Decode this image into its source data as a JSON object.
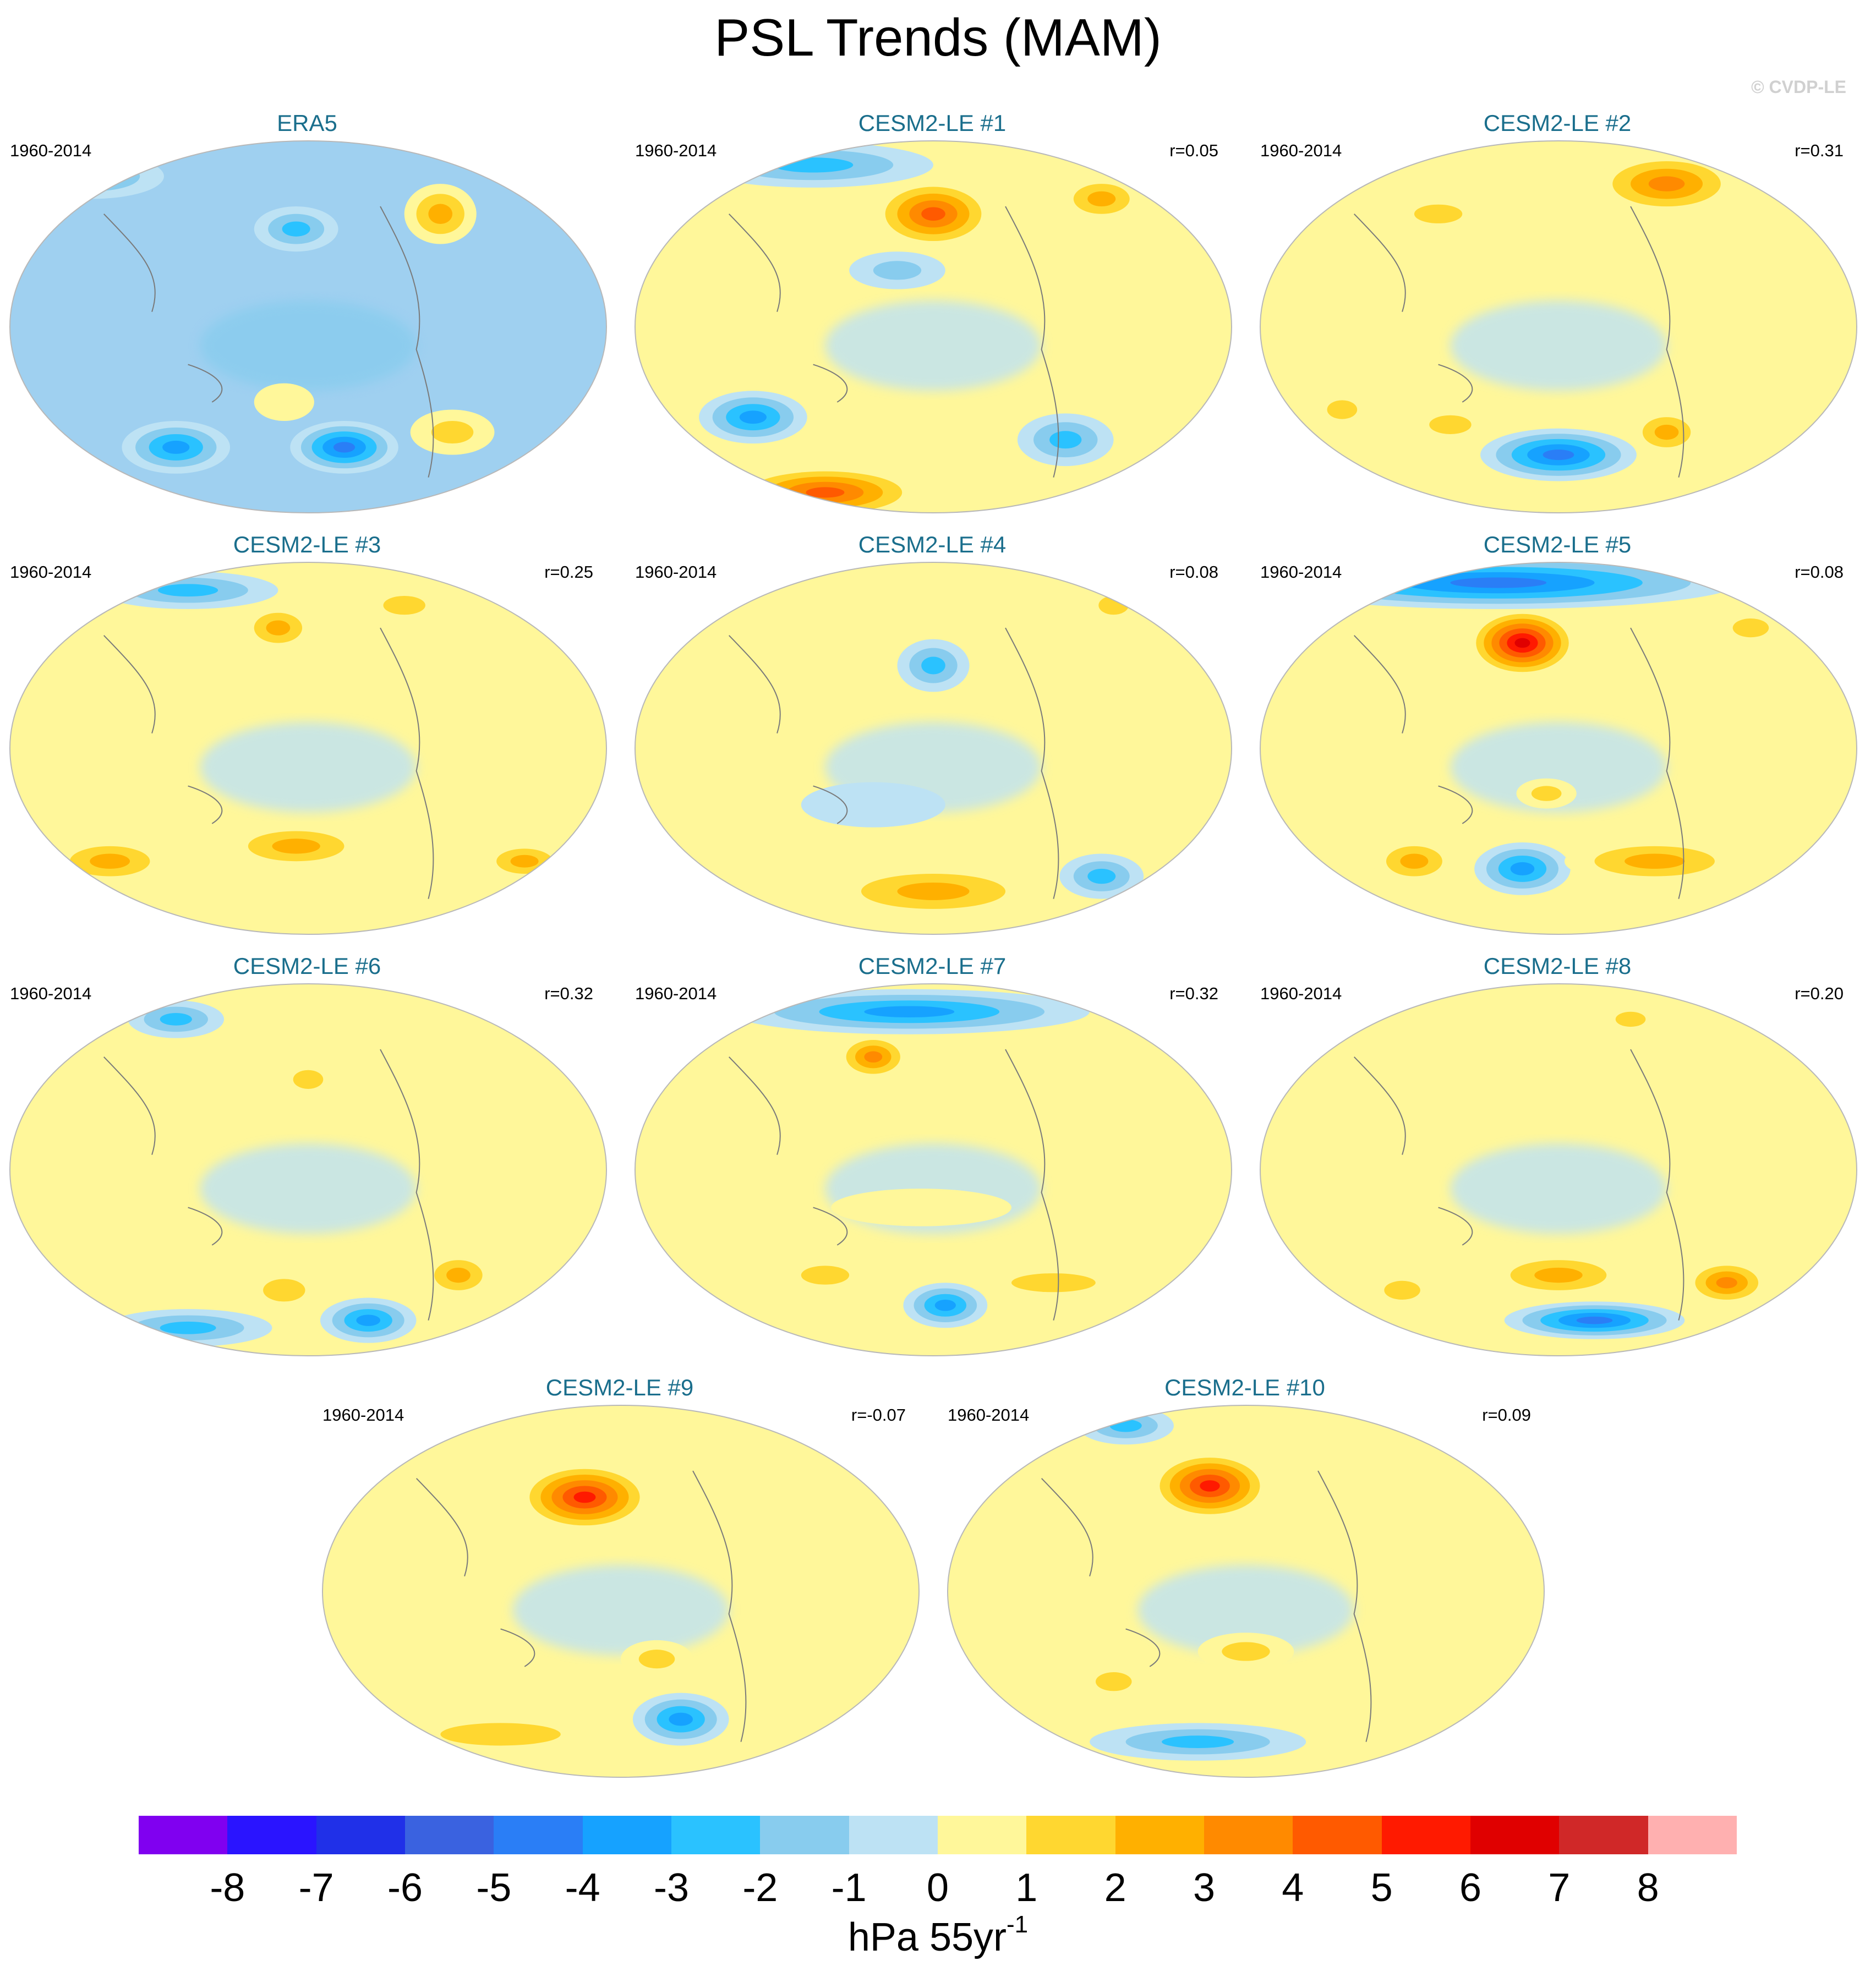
{
  "title": "PSL Trends (MAM)",
  "watermark": "© CVDP-LE",
  "chart_data": {
    "type": "heatmap",
    "title": "PSL Trends (MAM)",
    "projection": "Robinson-like global maps, Pacific-centered",
    "units": "hPa 55yr-1",
    "levels": [
      -8,
      -7,
      -6,
      -5,
      -4,
      -3,
      -2,
      -1,
      0,
      1,
      2,
      3,
      4,
      5,
      6,
      7,
      8
    ],
    "colors": [
      "#8000f0",
      "#2a14ff",
      "#2030e8",
      "#3a62e0",
      "#2a7ef6",
      "#16a2ff",
      "#2ac2ff",
      "#88ccee",
      "#bde2f4",
      "#fff79a",
      "#ffd730",
      "#ffb000",
      "#ff8a00",
      "#ff5a00",
      "#ff1a00",
      "#e00000",
      "#d02828",
      "#ffb0b0"
    ],
    "panels": [
      {
        "name": "ERA5",
        "period": "1960-2014",
        "r": "",
        "regime": "negative",
        "features": [
          {
            "lon": 0.72,
            "lat": 0.2,
            "value": 3,
            "rx": 0.06,
            "ry": 0.08
          },
          {
            "lon": 0.28,
            "lat": 0.82,
            "value": -4,
            "rx": 0.09,
            "ry": 0.07
          },
          {
            "lon": 0.56,
            "lat": 0.82,
            "value": -5,
            "rx": 0.09,
            "ry": 0.07
          },
          {
            "lon": 0.74,
            "lat": 0.78,
            "value": 2,
            "rx": 0.07,
            "ry": 0.06
          },
          {
            "lon": 0.46,
            "lat": 0.7,
            "value": 1,
            "rx": 0.05,
            "ry": 0.05
          },
          {
            "lon": 0.14,
            "lat": 0.1,
            "value": -3,
            "rx": 0.12,
            "ry": 0.06
          },
          {
            "lon": 0.48,
            "lat": 0.24,
            "value": -3,
            "rx": 0.07,
            "ry": 0.06
          }
        ]
      },
      {
        "name": "CESM2-LE #1",
        "period": "1960-2014",
        "r": "r=0.05",
        "regime": "positive",
        "features": [
          {
            "lon": 0.5,
            "lat": 0.2,
            "value": 5,
            "rx": 0.1,
            "ry": 0.09
          },
          {
            "lon": 0.78,
            "lat": 0.16,
            "value": 3,
            "rx": 0.07,
            "ry": 0.06
          },
          {
            "lon": 0.2,
            "lat": 0.74,
            "value": -4,
            "rx": 0.09,
            "ry": 0.07
          },
          {
            "lon": 0.72,
            "lat": 0.8,
            "value": -3,
            "rx": 0.08,
            "ry": 0.07
          },
          {
            "lon": 0.32,
            "lat": 0.94,
            "value": 5,
            "rx": 0.16,
            "ry": 0.07
          },
          {
            "lon": 0.3,
            "lat": 0.07,
            "value": -3,
            "rx": 0.2,
            "ry": 0.06
          },
          {
            "lon": 0.44,
            "lat": 0.35,
            "value": -2,
            "rx": 0.08,
            "ry": 0.05
          }
        ]
      },
      {
        "name": "CESM2-LE #2",
        "period": "1960-2014",
        "r": "r=0.31",
        "regime": "positive",
        "features": [
          {
            "lon": 0.68,
            "lat": 0.12,
            "value": 4,
            "rx": 0.12,
            "ry": 0.08
          },
          {
            "lon": 0.5,
            "lat": 0.84,
            "value": -5,
            "rx": 0.13,
            "ry": 0.07
          },
          {
            "lon": 0.68,
            "lat": 0.78,
            "value": 3,
            "rx": 0.06,
            "ry": 0.06
          },
          {
            "lon": 0.32,
            "lat": 0.76,
            "value": 2,
            "rx": 0.07,
            "ry": 0.05
          },
          {
            "lon": 0.14,
            "lat": 0.72,
            "value": 2,
            "rx": 0.05,
            "ry": 0.05
          },
          {
            "lon": 0.3,
            "lat": 0.2,
            "value": 2,
            "rx": 0.08,
            "ry": 0.05
          }
        ]
      },
      {
        "name": "CESM2-LE #3",
        "period": "1960-2014",
        "r": "r=0.25",
        "regime": "positive",
        "features": [
          {
            "lon": 0.45,
            "lat": 0.18,
            "value": 3,
            "rx": 0.06,
            "ry": 0.06
          },
          {
            "lon": 0.66,
            "lat": 0.12,
            "value": 2,
            "rx": 0.07,
            "ry": 0.05
          },
          {
            "lon": 0.17,
            "lat": 0.8,
            "value": 3,
            "rx": 0.1,
            "ry": 0.06
          },
          {
            "lon": 0.48,
            "lat": 0.76,
            "value": 3,
            "rx": 0.12,
            "ry": 0.06
          },
          {
            "lon": 0.86,
            "lat": 0.8,
            "value": 3,
            "rx": 0.07,
            "ry": 0.05
          },
          {
            "lon": 0.3,
            "lat": 0.08,
            "value": -3,
            "rx": 0.15,
            "ry": 0.05
          }
        ]
      },
      {
        "name": "CESM2-LE #4",
        "period": "1960-2014",
        "r": "r=0.08",
        "regime": "positive",
        "features": [
          {
            "lon": 0.5,
            "lat": 0.28,
            "value": -3,
            "rx": 0.06,
            "ry": 0.07
          },
          {
            "lon": 0.5,
            "lat": 0.88,
            "value": 3,
            "rx": 0.18,
            "ry": 0.07
          },
          {
            "lon": 0.78,
            "lat": 0.84,
            "value": -3,
            "rx": 0.07,
            "ry": 0.06
          },
          {
            "lon": 0.4,
            "lat": 0.65,
            "value": -1,
            "rx": 0.12,
            "ry": 0.06
          },
          {
            "lon": 0.8,
            "lat": 0.12,
            "value": 2,
            "rx": 0.05,
            "ry": 0.05
          }
        ]
      },
      {
        "name": "CESM2-LE #5",
        "period": "1960-2014",
        "r": "r=0.08",
        "regime": "positive",
        "features": [
          {
            "lon": 0.44,
            "lat": 0.22,
            "value": 7,
            "rx": 0.09,
            "ry": 0.09
          },
          {
            "lon": 0.4,
            "lat": 0.06,
            "value": -5,
            "rx": 0.4,
            "ry": 0.07
          },
          {
            "lon": 0.44,
            "lat": 0.82,
            "value": -4,
            "rx": 0.08,
            "ry": 0.07
          },
          {
            "lon": 0.26,
            "lat": 0.8,
            "value": 3,
            "rx": 0.07,
            "ry": 0.06
          },
          {
            "lon": 0.66,
            "lat": 0.8,
            "value": 3,
            "rx": 0.15,
            "ry": 0.06
          },
          {
            "lon": 0.82,
            "lat": 0.18,
            "value": 2,
            "rx": 0.06,
            "ry": 0.05
          },
          {
            "lon": 0.48,
            "lat": 0.62,
            "value": 2,
            "rx": 0.05,
            "ry": 0.04
          }
        ]
      },
      {
        "name": "CESM2-LE #6",
        "period": "1960-2014",
        "r": "r=0.32",
        "regime": "positive",
        "features": [
          {
            "lon": 0.46,
            "lat": 0.82,
            "value": 2,
            "rx": 0.07,
            "ry": 0.06
          },
          {
            "lon": 0.75,
            "lat": 0.78,
            "value": 3,
            "rx": 0.06,
            "ry": 0.06
          },
          {
            "lon": 0.6,
            "lat": 0.9,
            "value": -4,
            "rx": 0.08,
            "ry": 0.06
          },
          {
            "lon": 0.3,
            "lat": 0.92,
            "value": -3,
            "rx": 0.14,
            "ry": 0.05
          },
          {
            "lon": 0.5,
            "lat": 0.26,
            "value": 2,
            "rx": 0.05,
            "ry": 0.05
          },
          {
            "lon": 0.28,
            "lat": 0.1,
            "value": -3,
            "rx": 0.08,
            "ry": 0.05
          }
        ]
      },
      {
        "name": "CESM2-LE #7",
        "period": "1960-2014",
        "r": "r=0.32",
        "regime": "positive",
        "features": [
          {
            "lon": 0.4,
            "lat": 0.2,
            "value": 4,
            "rx": 0.06,
            "ry": 0.06
          },
          {
            "lon": 0.46,
            "lat": 0.08,
            "value": -4,
            "rx": 0.3,
            "ry": 0.06
          },
          {
            "lon": 0.52,
            "lat": 0.86,
            "value": -4,
            "rx": 0.07,
            "ry": 0.06
          },
          {
            "lon": 0.32,
            "lat": 0.78,
            "value": 2,
            "rx": 0.08,
            "ry": 0.05
          },
          {
            "lon": 0.7,
            "lat": 0.8,
            "value": 2,
            "rx": 0.14,
            "ry": 0.05
          },
          {
            "lon": 0.48,
            "lat": 0.6,
            "value": 1,
            "rx": 0.15,
            "ry": 0.05
          }
        ]
      },
      {
        "name": "CESM2-LE #8",
        "period": "1960-2014",
        "r": "r=0.20",
        "regime": "positive",
        "features": [
          {
            "lon": 0.5,
            "lat": 0.78,
            "value": 3,
            "rx": 0.12,
            "ry": 0.06
          },
          {
            "lon": 0.78,
            "lat": 0.8,
            "value": 4,
            "rx": 0.07,
            "ry": 0.06
          },
          {
            "lon": 0.56,
            "lat": 0.9,
            "value": -5,
            "rx": 0.15,
            "ry": 0.05
          },
          {
            "lon": 0.24,
            "lat": 0.82,
            "value": 2,
            "rx": 0.06,
            "ry": 0.05
          },
          {
            "lon": 0.62,
            "lat": 0.1,
            "value": 2,
            "rx": 0.05,
            "ry": 0.04
          }
        ]
      },
      {
        "name": "CESM2-LE #9",
        "period": "1960-2014",
        "r": "r=-0.07",
        "regime": "positive",
        "features": [
          {
            "lon": 0.44,
            "lat": 0.25,
            "value": 6,
            "rx": 0.11,
            "ry": 0.09
          },
          {
            "lon": 0.6,
            "lat": 0.84,
            "value": -4,
            "rx": 0.08,
            "ry": 0.07
          },
          {
            "lon": 0.3,
            "lat": 0.88,
            "value": 2,
            "rx": 0.2,
            "ry": 0.06
          },
          {
            "lon": 0.56,
            "lat": 0.68,
            "value": 2,
            "rx": 0.06,
            "ry": 0.05
          },
          {
            "lon": 0.18,
            "lat": 0.94,
            "value": 3,
            "rx": 0.06,
            "ry": 0.04
          }
        ]
      },
      {
        "name": "CESM2-LE #10",
        "period": "1960-2014",
        "r": "r=0.09",
        "regime": "positive",
        "features": [
          {
            "lon": 0.44,
            "lat": 0.22,
            "value": 6,
            "rx": 0.1,
            "ry": 0.09
          },
          {
            "lon": 0.3,
            "lat": 0.06,
            "value": -3,
            "rx": 0.08,
            "ry": 0.05
          },
          {
            "lon": 0.42,
            "lat": 0.9,
            "value": -3,
            "rx": 0.18,
            "ry": 0.05
          },
          {
            "lon": 0.28,
            "lat": 0.74,
            "value": 2,
            "rx": 0.06,
            "ry": 0.05
          },
          {
            "lon": 0.5,
            "lat": 0.66,
            "value": 2,
            "rx": 0.08,
            "ry": 0.05
          }
        ]
      }
    ],
    "colorbar_ticks": [
      "-8",
      "-7",
      "-6",
      "-5",
      "-4",
      "-3",
      "-2",
      "-1",
      "0",
      "1",
      "2",
      "3",
      "4",
      "5",
      "6",
      "7",
      "8"
    ],
    "colorbar_label": "hPa 55yr",
    "colorbar_label_exponent": "-1"
  }
}
